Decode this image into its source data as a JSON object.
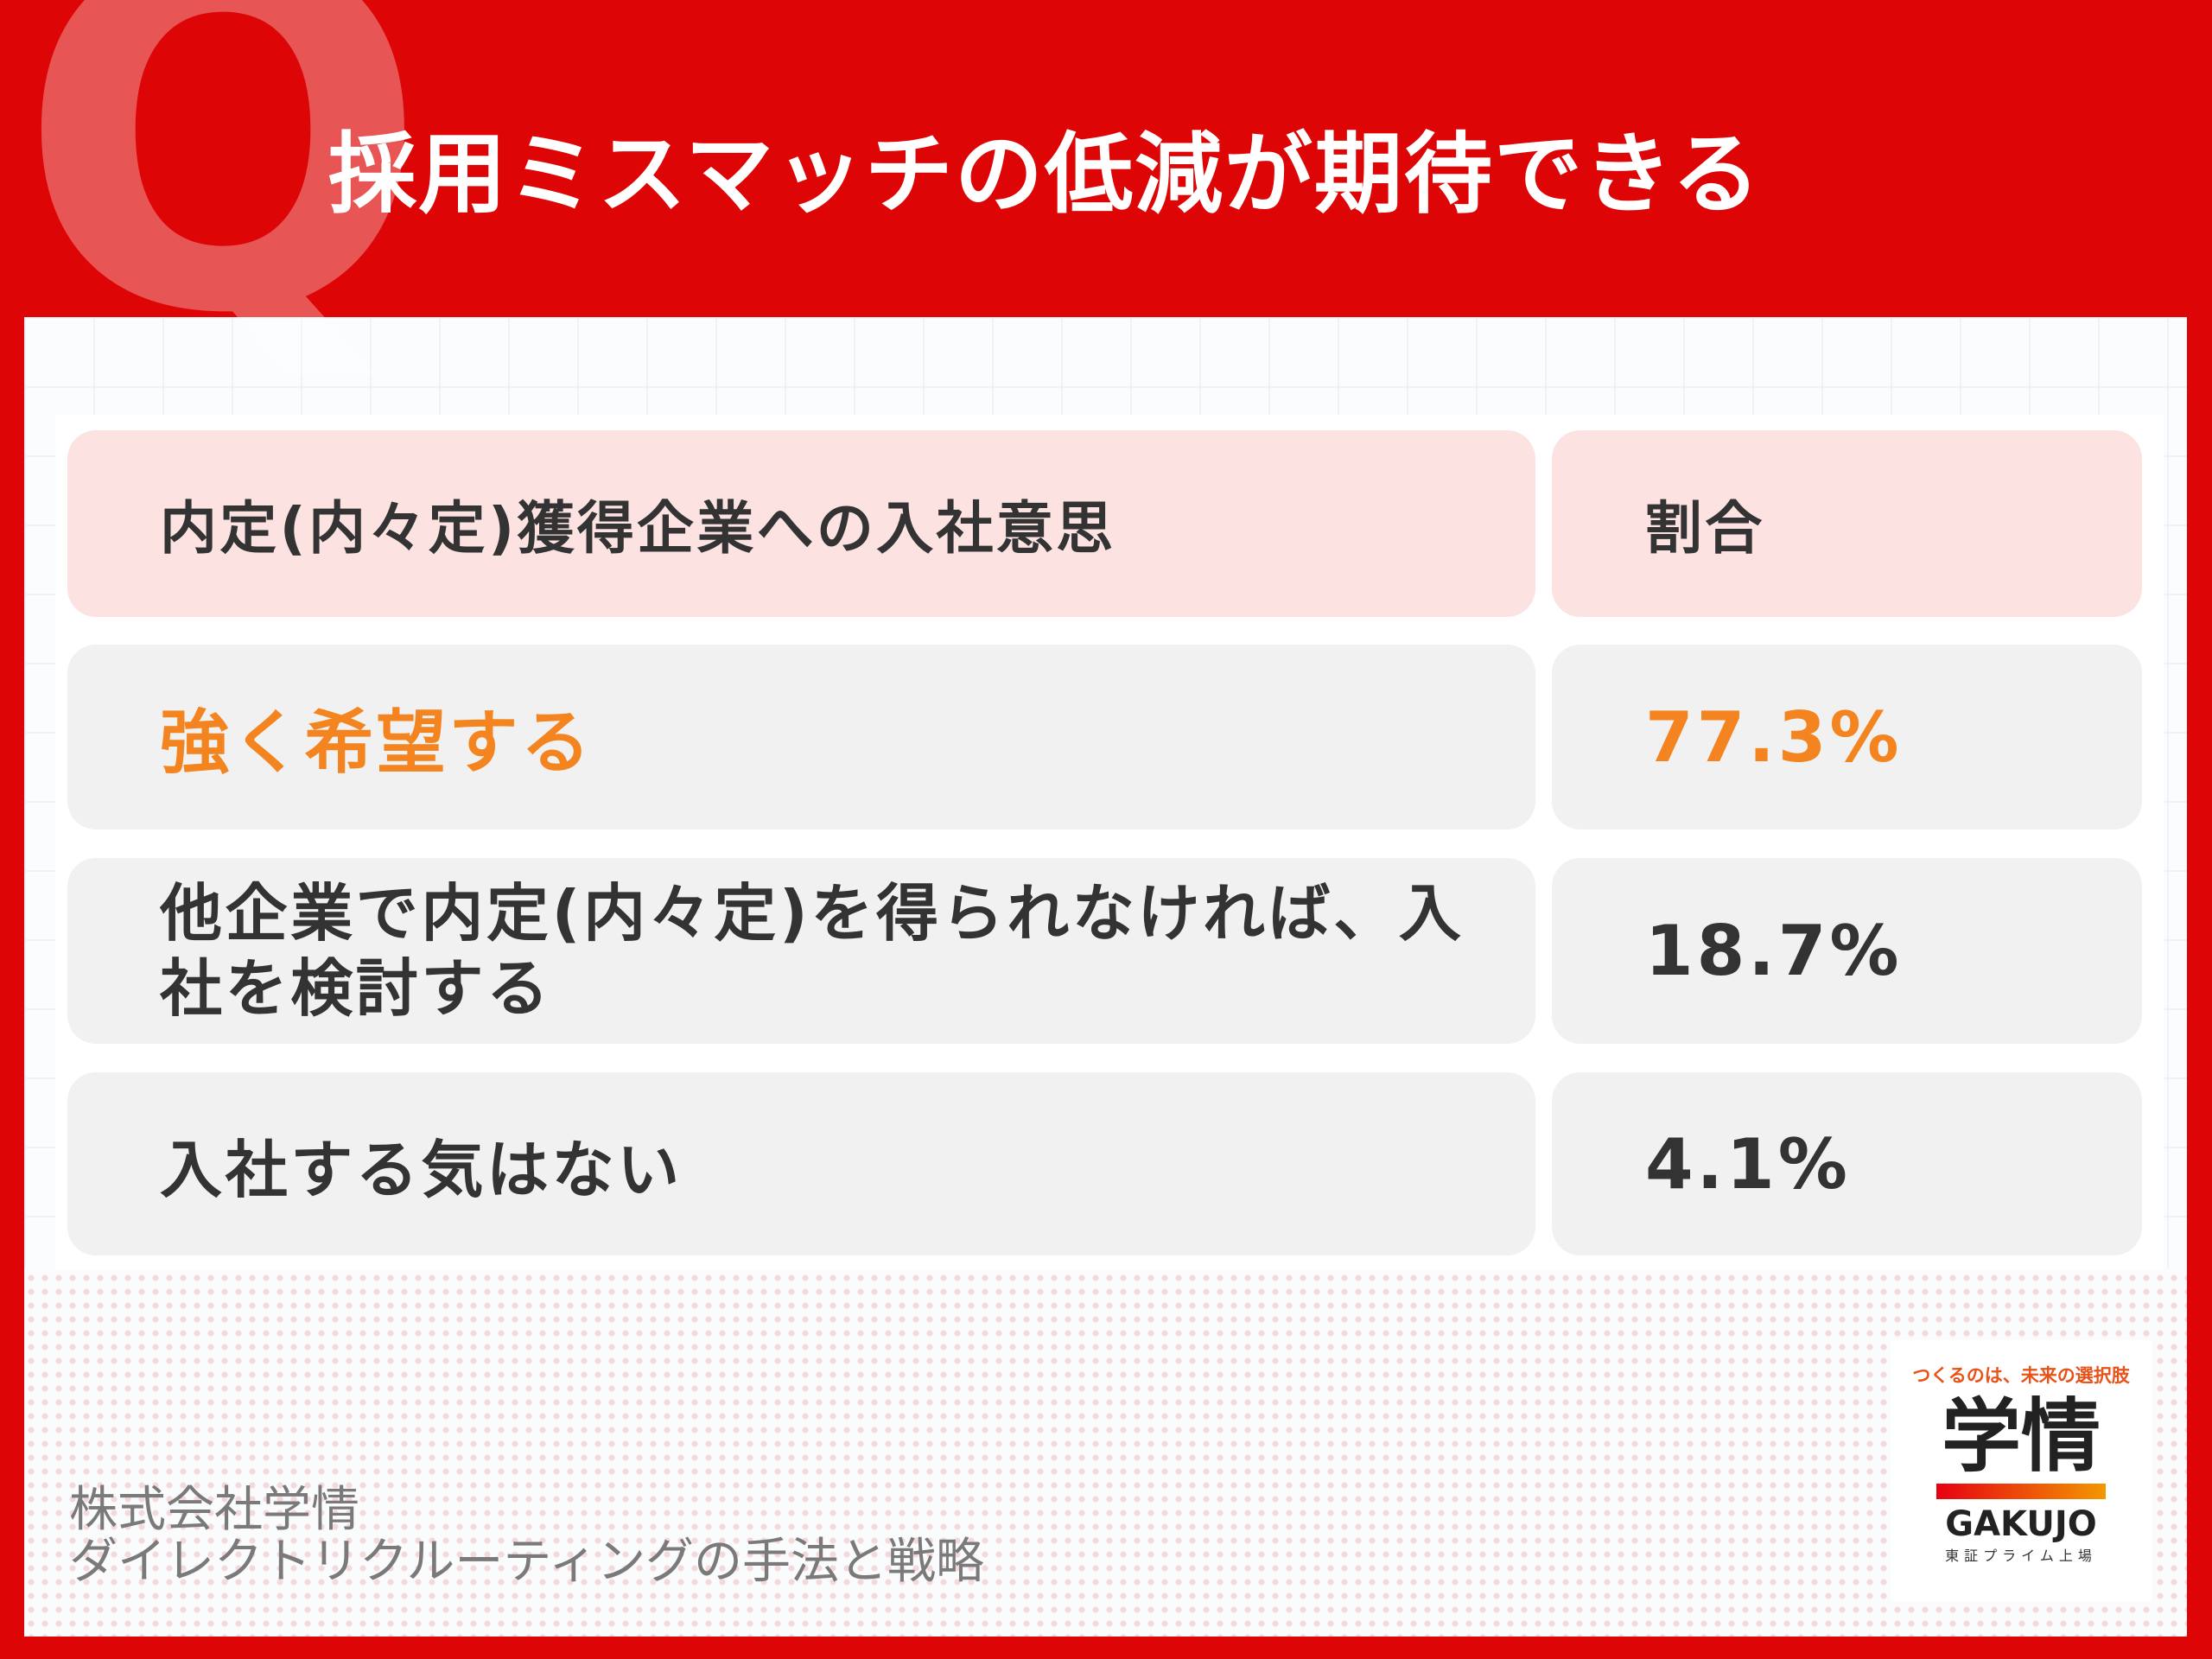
{
  "header": {
    "badge": "Q",
    "title": "採用ミスマッチの低減が期待できる"
  },
  "table": {
    "columns": [
      "内定(内々定)獲得企業への入社意思",
      "割合"
    ],
    "rows": [
      [
        "強く希望する",
        "77.3%"
      ],
      [
        "他企業で内定(内々定)を得られなければ、入社を検討する",
        "18.7%"
      ],
      [
        "入社する気はない",
        "4.1%"
      ]
    ]
  },
  "footer": {
    "lines": [
      "株式会社学情",
      "ダイレクトリクルーティングの手法と戦略"
    ]
  },
  "logo": {
    "tagline": "つくるのは、未来の選択肢",
    "name": "学情",
    "roman": "GAKUJO",
    "note": "東証プライム上場"
  }
}
